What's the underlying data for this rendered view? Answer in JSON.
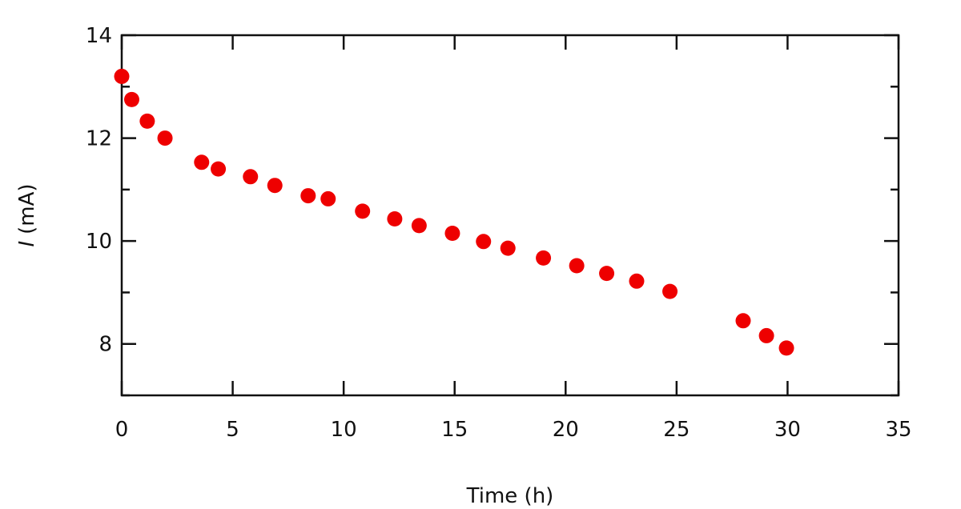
{
  "chart_data": {
    "type": "scatter",
    "title": "",
    "xlabel": "Time (h)",
    "ylabel_symbol": "I",
    "ylabel_unit": "(mA)",
    "xlim": [
      0,
      35
    ],
    "ylim": [
      7,
      14
    ],
    "x_ticks": [
      0,
      5,
      10,
      15,
      20,
      25,
      30,
      35
    ],
    "x_tick_labels": [
      "0",
      "5",
      "10",
      "15",
      "20",
      "25",
      "30",
      "35"
    ],
    "y_major_ticks": [
      8,
      10,
      12,
      14
    ],
    "y_tick_labels": [
      "8",
      "10",
      "12",
      "14"
    ],
    "y_minor_ticks": [
      7,
      9,
      11,
      13
    ],
    "grid": false,
    "marker_color": "#ee0000",
    "series": [
      {
        "points": [
          {
            "x": 0.0,
            "y": 13.2
          },
          {
            "x": 0.45,
            "y": 12.75
          },
          {
            "x": 1.15,
            "y": 12.33
          },
          {
            "x": 1.95,
            "y": 12.0
          },
          {
            "x": 3.6,
            "y": 11.53
          },
          {
            "x": 4.35,
            "y": 11.4
          },
          {
            "x": 5.8,
            "y": 11.25
          },
          {
            "x": 6.9,
            "y": 11.08
          },
          {
            "x": 8.4,
            "y": 10.88
          },
          {
            "x": 9.3,
            "y": 10.82
          },
          {
            "x": 10.85,
            "y": 10.58
          },
          {
            "x": 12.3,
            "y": 10.43
          },
          {
            "x": 13.4,
            "y": 10.3
          },
          {
            "x": 14.9,
            "y": 10.15
          },
          {
            "x": 16.3,
            "y": 9.99
          },
          {
            "x": 17.4,
            "y": 9.86
          },
          {
            "x": 19.0,
            "y": 9.67
          },
          {
            "x": 20.5,
            "y": 9.52
          },
          {
            "x": 21.85,
            "y": 9.37
          },
          {
            "x": 23.2,
            "y": 9.22
          },
          {
            "x": 24.7,
            "y": 9.02
          },
          {
            "x": 28.0,
            "y": 8.45
          },
          {
            "x": 29.05,
            "y": 8.16
          },
          {
            "x": 29.95,
            "y": 7.92
          }
        ]
      }
    ]
  }
}
